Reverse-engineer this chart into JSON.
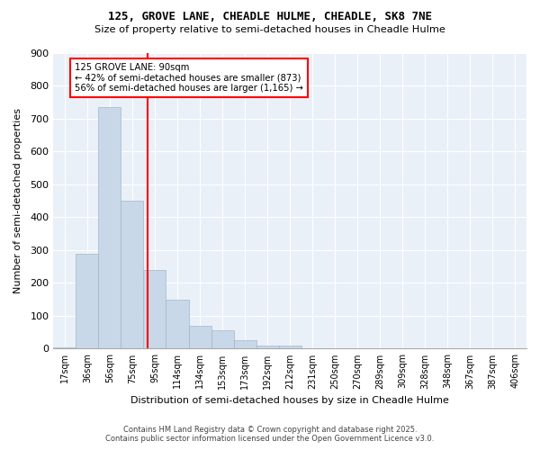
{
  "title1": "125, GROVE LANE, CHEADLE HULME, CHEADLE, SK8 7NE",
  "title2": "Size of property relative to semi-detached houses in Cheadle Hulme",
  "xlabel": "Distribution of semi-detached houses by size in Cheadle Hulme",
  "ylabel": "Number of semi-detached properties",
  "bins": [
    "17sqm",
    "36sqm",
    "56sqm",
    "75sqm",
    "95sqm",
    "114sqm",
    "134sqm",
    "153sqm",
    "173sqm",
    "192sqm",
    "212sqm",
    "231sqm",
    "250sqm",
    "270sqm",
    "289sqm",
    "309sqm",
    "328sqm",
    "348sqm",
    "367sqm",
    "387sqm",
    "406sqm"
  ],
  "values": [
    5,
    290,
    735,
    450,
    240,
    150,
    70,
    55,
    25,
    10,
    10,
    0,
    0,
    0,
    0,
    0,
    0,
    0,
    0,
    0,
    0
  ],
  "bar_color": "#c8d8e8",
  "bar_edge_color": "#a0b8cc",
  "bg_color": "#eaf0f8",
  "red_line_x": 3.7,
  "ylim_max": 900,
  "annotation_line1": "125 GROVE LANE: 90sqm",
  "annotation_line2": "← 42% of semi-detached houses are smaller (873)",
  "annotation_line3": "56% of semi-detached houses are larger (1,165) →",
  "footer1": "Contains HM Land Registry data © Crown copyright and database right 2025.",
  "footer2": "Contains public sector information licensed under the Open Government Licence v3.0."
}
